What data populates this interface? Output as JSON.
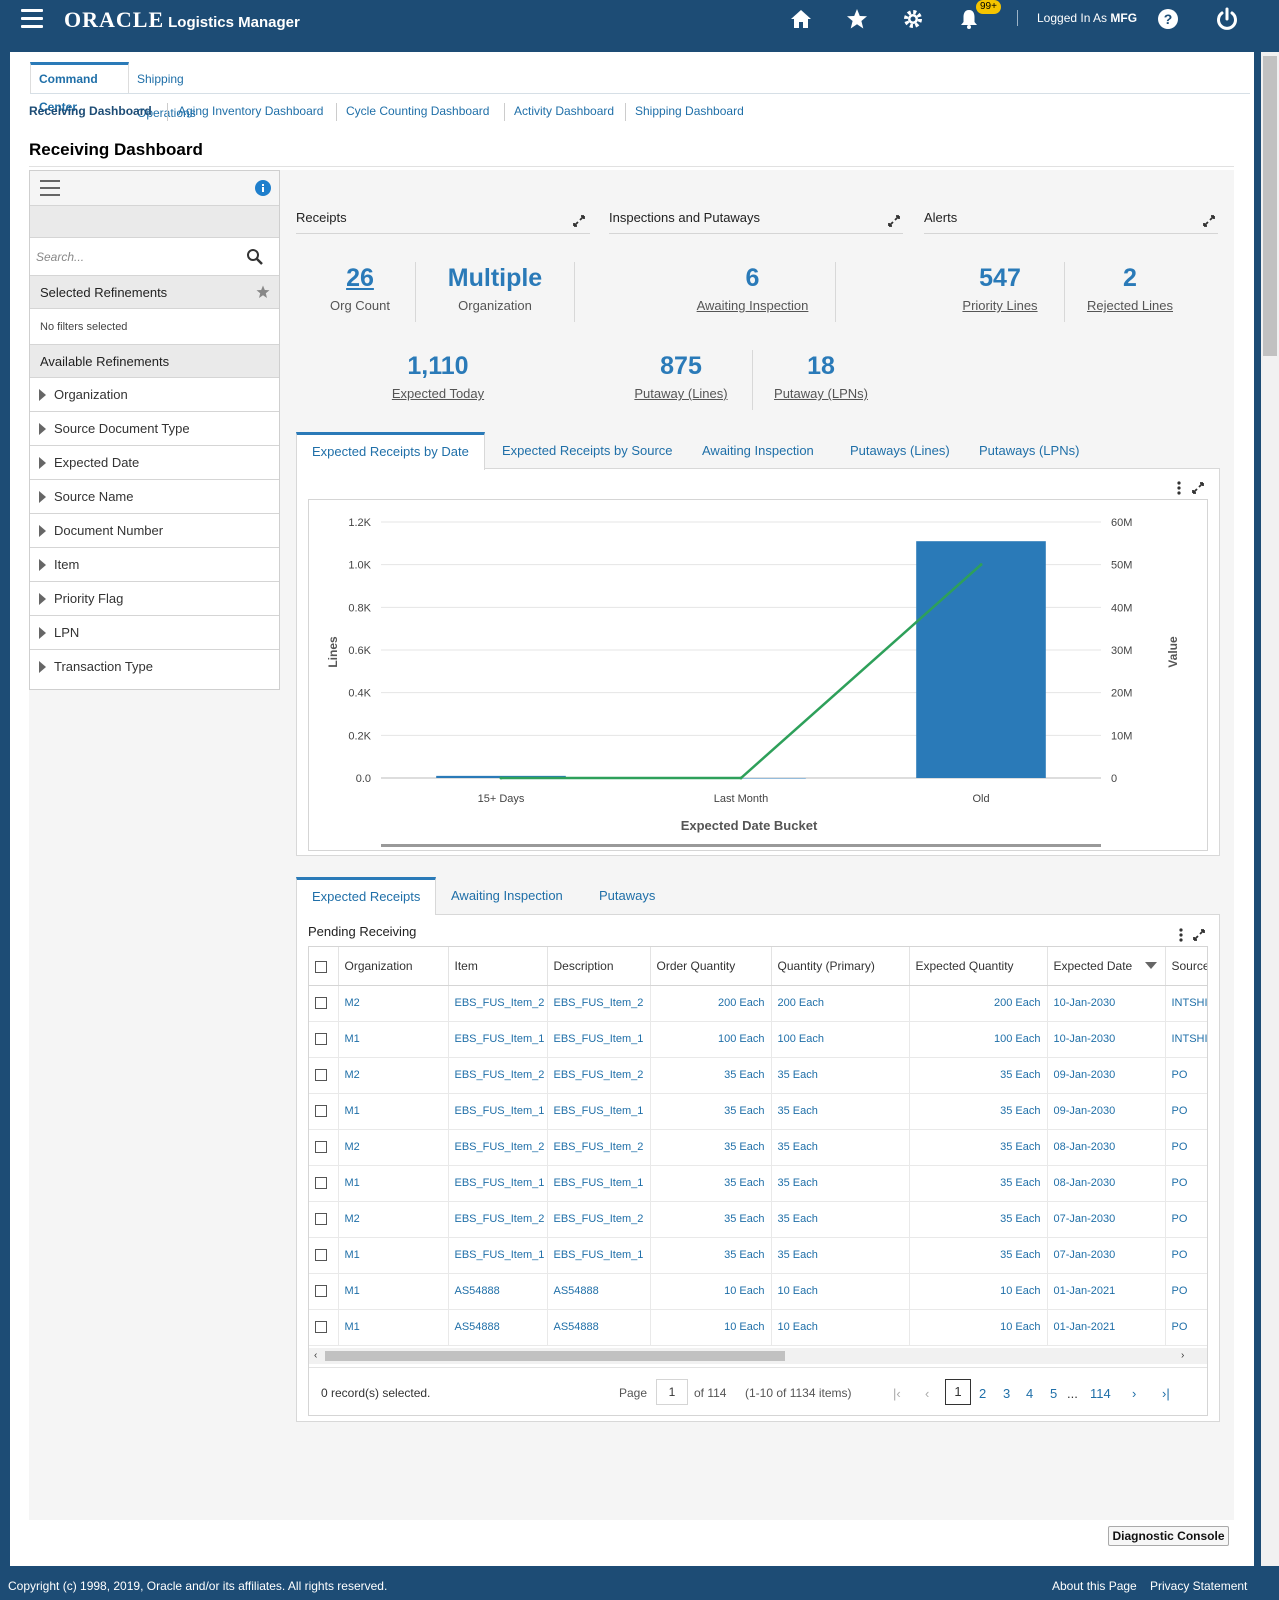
{
  "app": {
    "brand": "ORACLE",
    "app_name": "Logistics Manager",
    "notif_count": "99+",
    "login_prefix": "Logged In As",
    "login_user": "MFG"
  },
  "tabs": [
    {
      "label": "Command Center"
    },
    {
      "label": "Shipping Operations"
    }
  ],
  "subnav": [
    "Receiving Dashboard",
    "Aging Inventory Dashboard",
    "Cycle Counting Dashboard",
    "Activity Dashboard",
    "Shipping Dashboard"
  ],
  "page_title": "Receiving Dashboard",
  "refinements": {
    "search_placeholder": "Search...",
    "selected_title": "Selected Refinements",
    "no_filters": "No filters selected",
    "available_title": "Available Refinements",
    "items": [
      "Organization",
      "Source Document Type",
      "Expected Date",
      "Source Name",
      "Document Number",
      "Item",
      "Priority Flag",
      "LPN",
      "Transaction Type"
    ]
  },
  "sections": [
    "Receipts",
    "Inspections and Putaways",
    "Alerts"
  ],
  "metrics": {
    "org_count": {
      "value": "26",
      "label": "Org Count"
    },
    "organization": {
      "value": "Multiple",
      "label": "Organization"
    },
    "awaiting": {
      "value": "6",
      "label": "Awaiting Inspection"
    },
    "priority": {
      "value": "547",
      "label": "Priority Lines"
    },
    "rejected": {
      "value": "2",
      "label": "Rejected Lines"
    },
    "expected_today": {
      "value": "1,110",
      "label": "Expected Today"
    },
    "putaway_lines": {
      "value": "875",
      "label": "Putaway (Lines)"
    },
    "putaway_lpns": {
      "value": "18",
      "label": "Putaway (LPNs)"
    }
  },
  "chart_tabs": [
    "Expected Receipts by Date",
    "Expected Receipts by Source",
    "Awaiting Inspection",
    "Putaways (Lines)",
    "Putaways (LPNs)"
  ],
  "chart_data": {
    "type": "bar",
    "categories": [
      "15+ Days",
      "Last Month",
      "Old"
    ],
    "series": [
      {
        "name": "Lines",
        "type": "bar",
        "axis": "left",
        "values": [
          10,
          0,
          1110
        ],
        "color": "#2a7ab8"
      },
      {
        "name": "Value",
        "type": "line",
        "axis": "right",
        "values": [
          0,
          0,
          50
        ],
        "color": "#2ea05a"
      }
    ],
    "xlabel": "Expected Date Bucket",
    "ylabel": "Lines",
    "y2label": "Value",
    "ylim": [
      0,
      1200
    ],
    "y2lim": [
      0,
      60
    ],
    "yticks": [
      "0.0",
      "0.2K",
      "0.4K",
      "0.6K",
      "0.8K",
      "1.0K",
      "1.2K"
    ],
    "y2ticks": [
      "0",
      "10M",
      "20M",
      "30M",
      "40M",
      "50M",
      "60M"
    ],
    "grid": true
  },
  "table_tabs": [
    "Expected Receipts",
    "Awaiting Inspection",
    "Putaways"
  ],
  "table": {
    "title": "Pending Receiving",
    "columns": [
      "Organization",
      "Item",
      "Description",
      "Order Quantity",
      "Quantity (Primary)",
      "Expected Quantity",
      "Expected Date",
      "Source"
    ],
    "rows": [
      [
        "M2",
        "EBS_FUS_Item_2",
        "EBS_FUS_Item_2",
        "200 Each",
        "200 Each",
        "200 Each",
        "10-Jan-2030",
        "INTSHIP"
      ],
      [
        "M1",
        "EBS_FUS_Item_1",
        "EBS_FUS_Item_1",
        "100 Each",
        "100 Each",
        "100 Each",
        "10-Jan-2030",
        "INTSHIP"
      ],
      [
        "M2",
        "EBS_FUS_Item_2",
        "EBS_FUS_Item_2",
        "35 Each",
        "35 Each",
        "35 Each",
        "09-Jan-2030",
        "PO"
      ],
      [
        "M1",
        "EBS_FUS_Item_1",
        "EBS_FUS_Item_1",
        "35 Each",
        "35 Each",
        "35 Each",
        "09-Jan-2030",
        "PO"
      ],
      [
        "M2",
        "EBS_FUS_Item_2",
        "EBS_FUS_Item_2",
        "35 Each",
        "35 Each",
        "35 Each",
        "08-Jan-2030",
        "PO"
      ],
      [
        "M1",
        "EBS_FUS_Item_1",
        "EBS_FUS_Item_1",
        "35 Each",
        "35 Each",
        "35 Each",
        "08-Jan-2030",
        "PO"
      ],
      [
        "M2",
        "EBS_FUS_Item_2",
        "EBS_FUS_Item_2",
        "35 Each",
        "35 Each",
        "35 Each",
        "07-Jan-2030",
        "PO"
      ],
      [
        "M1",
        "EBS_FUS_Item_1",
        "EBS_FUS_Item_1",
        "35 Each",
        "35 Each",
        "35 Each",
        "07-Jan-2030",
        "PO"
      ],
      [
        "M1",
        "AS54888",
        "AS54888",
        "10 Each",
        "10 Each",
        "10 Each",
        "01-Jan-2021",
        "PO"
      ],
      [
        "M1",
        "AS54888",
        "AS54888",
        "10 Each",
        "10 Each",
        "10 Each",
        "01-Jan-2021",
        "PO"
      ]
    ],
    "records_selected": "0 record(s) selected.",
    "page_label": "Page",
    "page_value": "1",
    "page_of": "of 114",
    "items_range": "(1-10 of 1134 items)",
    "pages": [
      "1",
      "2",
      "3",
      "4",
      "5",
      "...",
      "114"
    ]
  },
  "footer": {
    "copyright": "Copyright (c) 1998, 2019, Oracle and/or its affiliates. All rights reserved.",
    "about": "About this Page",
    "privacy": "Privacy Statement"
  },
  "diagnostic": "Diagnostic Console"
}
